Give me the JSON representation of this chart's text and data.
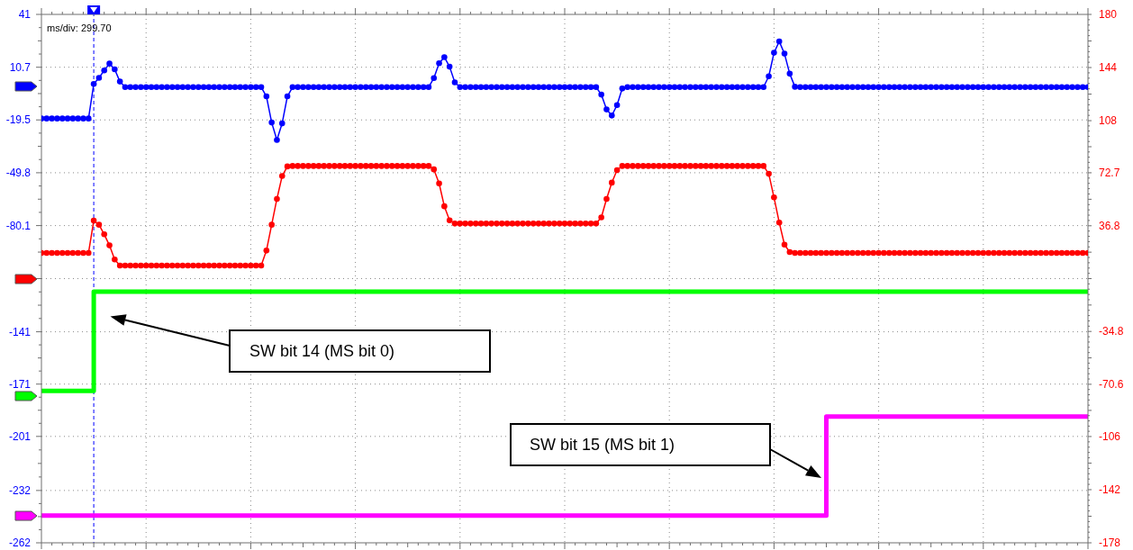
{
  "chart_data": {
    "type": "line",
    "categories": [
      null,
      null,
      null,
      null,
      null,
      null,
      null,
      null,
      null,
      null,
      null,
      null,
      null,
      null,
      null,
      null,
      null,
      null,
      null,
      null,
      null,
      null,
      null,
      null,
      null,
      null,
      null,
      null,
      null,
      null,
      null,
      null,
      null,
      null,
      null,
      null,
      null,
      null,
      null,
      null,
      null,
      null,
      null,
      null,
      null,
      null,
      null,
      null,
      null,
      null,
      null,
      null,
      null,
      null,
      null,
      null,
      null,
      null,
      null,
      null,
      null,
      null,
      null,
      null,
      null,
      null,
      null,
      null,
      null,
      null,
      null,
      null,
      null,
      null,
      null,
      null,
      null,
      null,
      null,
      null,
      null,
      null,
      null,
      null,
      null,
      null,
      null,
      null,
      null,
      null,
      null,
      null,
      null,
      null,
      null,
      null,
      null,
      null,
      null,
      null,
      null,
      null,
      null,
      null,
      null,
      null,
      null,
      null,
      null,
      null,
      null,
      null,
      null,
      null,
      null,
      null,
      null,
      null,
      null,
      null,
      null,
      null,
      null,
      null,
      null,
      null,
      null,
      null,
      null,
      null,
      null,
      null,
      null,
      null,
      null,
      null,
      null,
      null,
      null,
      null,
      null,
      null,
      null,
      null,
      null,
      null,
      null,
      null,
      null,
      null,
      null,
      null,
      null,
      null,
      null,
      null,
      null,
      null,
      null,
      null,
      null,
      null,
      null,
      null,
      null,
      null,
      null,
      null,
      null,
      null,
      null,
      null,
      null,
      null,
      null,
      null,
      null,
      null,
      null,
      null,
      null,
      null,
      null,
      null,
      null,
      null,
      null,
      null,
      null,
      null,
      null,
      null,
      null,
      null,
      null,
      null,
      null,
      null,
      null,
      null,
      null
    ],
    "series": [
      {
        "color": "#0000ff",
        "marker": "circle",
        "values": [
          -18.7,
          -18.7,
          -18.7,
          -18.7,
          -18.7,
          -18.7,
          -18.7,
          -18.7,
          -18.7,
          -18.7,
          1.1,
          4.6,
          8.9,
          12.8,
          9.5,
          2.5,
          -0.7,
          -0.7,
          -0.7,
          -0.7,
          -0.7,
          -0.7,
          -0.7,
          -0.7,
          -0.7,
          -0.7,
          -0.7,
          -0.7,
          -0.7,
          -0.7,
          -0.7,
          -0.7,
          -0.7,
          -0.7,
          -0.7,
          -0.7,
          -0.7,
          -0.7,
          -0.7,
          -0.7,
          -0.7,
          -0.7,
          -0.7,
          -6,
          -21,
          -31,
          -21.5,
          -6,
          -0.7,
          -0.7,
          -0.7,
          -0.7,
          -0.7,
          -0.7,
          -0.7,
          -0.7,
          -0.7,
          -0.7,
          -0.7,
          -0.7,
          -0.7,
          -0.7,
          -0.7,
          -0.7,
          -0.7,
          -0.7,
          -0.7,
          -0.7,
          -0.7,
          -0.7,
          -0.7,
          -0.7,
          -0.7,
          -0.7,
          -0.7,
          4.5,
          13,
          16.5,
          11,
          2,
          -0.7,
          -0.7,
          -0.7,
          -0.7,
          -0.7,
          -0.7,
          -0.7,
          -0.7,
          -0.7,
          -0.7,
          -0.7,
          -0.7,
          -0.7,
          -0.7,
          -0.7,
          -0.7,
          -0.7,
          -0.7,
          -0.7,
          -0.7,
          -0.7,
          -0.7,
          -0.7,
          -0.7,
          -0.7,
          -0.7,
          -0.7,
          -5,
          -13.5,
          -17,
          -11,
          -1.5,
          -0.7,
          -0.7,
          -0.7,
          -0.7,
          -0.7,
          -0.7,
          -0.7,
          -0.7,
          -0.7,
          -0.7,
          -0.7,
          -0.7,
          -0.7,
          -0.7,
          -0.7,
          -0.7,
          -0.7,
          -0.7,
          -0.7,
          -0.7,
          -0.7,
          -0.7,
          -0.7,
          -0.7,
          -0.7,
          -0.7,
          -0.7,
          5.5,
          19,
          25.5,
          18.5,
          7,
          -0.5,
          -0.7,
          -0.7,
          -0.7,
          -0.7,
          -0.7,
          -0.7,
          -0.7,
          -0.7,
          -0.7,
          -0.7,
          -0.7,
          -0.7,
          -0.7,
          -0.7,
          -0.7,
          -0.7,
          -0.7,
          -0.7,
          -0.7,
          -0.7,
          -0.7,
          -0.7,
          -0.7,
          -0.7,
          -0.7,
          -0.7,
          -0.7,
          -0.7,
          -0.7,
          -0.7,
          -0.7,
          -0.7,
          -0.7,
          -0.7,
          -0.7,
          -0.7,
          -0.7,
          -0.7,
          -0.7,
          -0.7,
          -0.7,
          -0.7,
          -0.7,
          -0.7,
          -0.7,
          -0.7,
          -0.7,
          -0.7,
          -0.7,
          -0.7,
          -0.7,
          -0.7,
          -0.7,
          -0.7,
          -0.7,
          -0.7
        ]
      },
      {
        "color": "#ff0000",
        "marker": "circle",
        "axis": "y2",
        "values": [
          18.4,
          18.4,
          18.4,
          18.4,
          18.4,
          18.4,
          18.4,
          18.4,
          18.4,
          18.4,
          40.3,
          37.5,
          31,
          23.5,
          14,
          9.8,
          9.8,
          9.8,
          9.8,
          9.8,
          9.8,
          9.8,
          9.8,
          9.8,
          9.8,
          9.8,
          9.8,
          9.8,
          9.8,
          9.8,
          9.8,
          9.8,
          9.8,
          9.8,
          9.8,
          9.8,
          9.8,
          9.8,
          9.8,
          9.8,
          9.8,
          9.8,
          9.8,
          20,
          37.5,
          55,
          70.5,
          77,
          77.3,
          77.3,
          77.3,
          77.3,
          77.3,
          77.3,
          77.3,
          77.3,
          77.3,
          77.3,
          77.3,
          77.3,
          77.3,
          77.3,
          77.3,
          77.3,
          77.3,
          77.3,
          77.3,
          77.3,
          77.3,
          77.3,
          77.3,
          77.3,
          77.3,
          77.3,
          77.3,
          75,
          65.5,
          50,
          40.5,
          38.3,
          38.3,
          38.3,
          38.3,
          38.3,
          38.3,
          38.3,
          38.3,
          38.3,
          38.3,
          38.3,
          38.3,
          38.3,
          38.3,
          38.3,
          38.3,
          38.3,
          38.3,
          38.3,
          38.3,
          38.3,
          38.3,
          38.3,
          38.3,
          38.3,
          38.3,
          38.3,
          38.3,
          42.5,
          55,
          66,
          74.5,
          77.3,
          77.3,
          77.3,
          77.3,
          77.3,
          77.3,
          77.3,
          77.3,
          77.3,
          77.3,
          77.3,
          77.3,
          77.3,
          77.3,
          77.3,
          77.3,
          77.3,
          77.3,
          77.3,
          77.3,
          77.3,
          77.3,
          77.3,
          77.3,
          77.3,
          77.3,
          77.3,
          77.3,
          72,
          56,
          39,
          24,
          19,
          18.4,
          18.4,
          18.4,
          18.4,
          18.4,
          18.4,
          18.4,
          18.4,
          18.4,
          18.4,
          18.4,
          18.4,
          18.4,
          18.4,
          18.4,
          18.4,
          18.4,
          18.4,
          18.4,
          18.4,
          18.4,
          18.4,
          18.4,
          18.4,
          18.4,
          18.4,
          18.4,
          18.4,
          18.4,
          18.4,
          18.4,
          18.4,
          18.4,
          18.4,
          18.4,
          18.4,
          18.4,
          18.4,
          18.4,
          18.4,
          18.4,
          18.4,
          18.4,
          18.4,
          18.4,
          18.4,
          18.4,
          18.4,
          18.4,
          18.4,
          18.4,
          18.4,
          18.4,
          18.4,
          18.4,
          18.4,
          18.4
        ]
      },
      {
        "type": "step",
        "color": "#00ff00",
        "marker": "none",
        "values": [
          -174.9,
          -174.9,
          -174.9,
          -174.9,
          -174.9,
          -174.9,
          -174.9,
          -174.9,
          -174.9,
          -174.9,
          -118,
          -118,
          -118,
          -118,
          -118,
          -118,
          -118,
          -118,
          -118,
          -118,
          -118,
          -118,
          -118,
          -118,
          -118,
          -118,
          -118,
          -118,
          -118,
          -118,
          -118,
          -118,
          -118,
          -118,
          -118,
          -118,
          -118,
          -118,
          -118,
          -118,
          -118,
          -118,
          -118,
          -118,
          -118,
          -118,
          -118,
          -118,
          -118,
          -118,
          -118,
          -118,
          -118,
          -118,
          -118,
          -118,
          -118,
          -118,
          -118,
          -118,
          -118,
          -118,
          -118,
          -118,
          -118,
          -118,
          -118,
          -118,
          -118,
          -118,
          -118,
          -118,
          -118,
          -118,
          -118,
          -118,
          -118,
          -118,
          -118,
          -118,
          -118,
          -118,
          -118,
          -118,
          -118,
          -118,
          -118,
          -118,
          -118,
          -118,
          -118,
          -118,
          -118,
          -118,
          -118,
          -118,
          -118,
          -118,
          -118,
          -118,
          -118,
          -118,
          -118,
          -118,
          -118,
          -118,
          -118,
          -118,
          -118,
          -118,
          -118,
          -118,
          -118,
          -118,
          -118,
          -118,
          -118,
          -118,
          -118,
          -118,
          -118,
          -118,
          -118,
          -118,
          -118,
          -118,
          -118,
          -118,
          -118,
          -118,
          -118,
          -118,
          -118,
          -118,
          -118,
          -118,
          -118,
          -118,
          -118,
          -118,
          -118,
          -118,
          -118,
          -118,
          -118,
          -118,
          -118,
          -118,
          -118,
          -118,
          -118,
          -118,
          -118,
          -118,
          -118,
          -118,
          -118,
          -118,
          -118,
          -118,
          -118,
          -118,
          -118,
          -118,
          -118,
          -118,
          -118,
          -118,
          -118,
          -118,
          -118,
          -118,
          -118,
          -118,
          -118,
          -118,
          -118,
          -118,
          -118,
          -118,
          -118,
          -118,
          -118,
          -118,
          -118,
          -118,
          -118,
          -118,
          -118,
          -118,
          -118,
          -118,
          -118,
          -118,
          -118,
          -118,
          -118,
          -118,
          -118,
          -118,
          -118
        ]
      },
      {
        "type": "step",
        "color": "#ff00ff",
        "marker": "none",
        "values": [
          -246.4,
          -246.4,
          -246.4,
          -246.4,
          -246.4,
          -246.4,
          -246.4,
          -246.4,
          -246.4,
          -246.4,
          -246.4,
          -246.4,
          -246.4,
          -246.4,
          -246.4,
          -246.4,
          -246.4,
          -246.4,
          -246.4,
          -246.4,
          -246.4,
          -246.4,
          -246.4,
          -246.4,
          -246.4,
          -246.4,
          -246.4,
          -246.4,
          -246.4,
          -246.4,
          -246.4,
          -246.4,
          -246.4,
          -246.4,
          -246.4,
          -246.4,
          -246.4,
          -246.4,
          -246.4,
          -246.4,
          -246.4,
          -246.4,
          -246.4,
          -246.4,
          -246.4,
          -246.4,
          -246.4,
          -246.4,
          -246.4,
          -246.4,
          -246.4,
          -246.4,
          -246.4,
          -246.4,
          -246.4,
          -246.4,
          -246.4,
          -246.4,
          -246.4,
          -246.4,
          -246.4,
          -246.4,
          -246.4,
          -246.4,
          -246.4,
          -246.4,
          -246.4,
          -246.4,
          -246.4,
          -246.4,
          -246.4,
          -246.4,
          -246.4,
          -246.4,
          -246.4,
          -246.4,
          -246.4,
          -246.4,
          -246.4,
          -246.4,
          -246.4,
          -246.4,
          -246.4,
          -246.4,
          -246.4,
          -246.4,
          -246.4,
          -246.4,
          -246.4,
          -246.4,
          -246.4,
          -246.4,
          -246.4,
          -246.4,
          -246.4,
          -246.4,
          -246.4,
          -246.4,
          -246.4,
          -246.4,
          -246.4,
          -246.4,
          -246.4,
          -246.4,
          -246.4,
          -246.4,
          -246.4,
          -246.4,
          -246.4,
          -246.4,
          -246.4,
          -246.4,
          -246.4,
          -246.4,
          -246.4,
          -246.4,
          -246.4,
          -246.4,
          -246.4,
          -246.4,
          -246.4,
          -246.4,
          -246.4,
          -246.4,
          -246.4,
          -246.4,
          -246.4,
          -246.4,
          -246.4,
          -246.4,
          -246.4,
          -246.4,
          -246.4,
          -246.4,
          -246.4,
          -246.4,
          -246.4,
          -246.4,
          -246.4,
          -246.4,
          -246.4,
          -246.4,
          -246.4,
          -246.4,
          -246.4,
          -246.4,
          -246.4,
          -246.4,
          -246.4,
          -246.4,
          -189.6,
          -189.6,
          -189.6,
          -189.6,
          -189.6,
          -189.6,
          -189.6,
          -189.6,
          -189.6,
          -189.6,
          -189.6,
          -189.6,
          -189.6,
          -189.6,
          -189.6,
          -189.6,
          -189.6,
          -189.6,
          -189.6,
          -189.6,
          -189.6,
          -189.6,
          -189.6,
          -189.6,
          -189.6,
          -189.6,
          -189.6,
          -189.6,
          -189.6,
          -189.6,
          -189.6,
          -189.6,
          -189.6,
          -189.6,
          -189.6,
          -189.6,
          -189.6,
          -189.6,
          -189.6,
          -189.6,
          -189.6,
          -189.6,
          -189.6,
          -189.6,
          -189.6,
          -189.6,
          -189.6,
          -189.6,
          -189.6,
          -189.6,
          -189.6
        ]
      }
    ],
    "ylim": [
      -262,
      41
    ],
    "yticks": [
      41,
      10.7,
      -19.5,
      -49.8,
      -80.1,
      {
        "value": -110.5,
        "label": null
      },
      -141,
      -171,
      -201,
      -232,
      -262
    ],
    "y2lim": [
      -178,
      180
    ],
    "y2ticks": [
      180,
      144,
      108,
      72.7,
      36.8,
      {
        "value": 1,
        "label": null
      },
      -34.8,
      -70.6,
      -106,
      -142,
      -178
    ],
    "grid": true,
    "annotations": [
      "ms/div: 299.70",
      "SW bit 14 (MS bit 0)",
      "SW bit 15 (MS bit 1)"
    ]
  }
}
